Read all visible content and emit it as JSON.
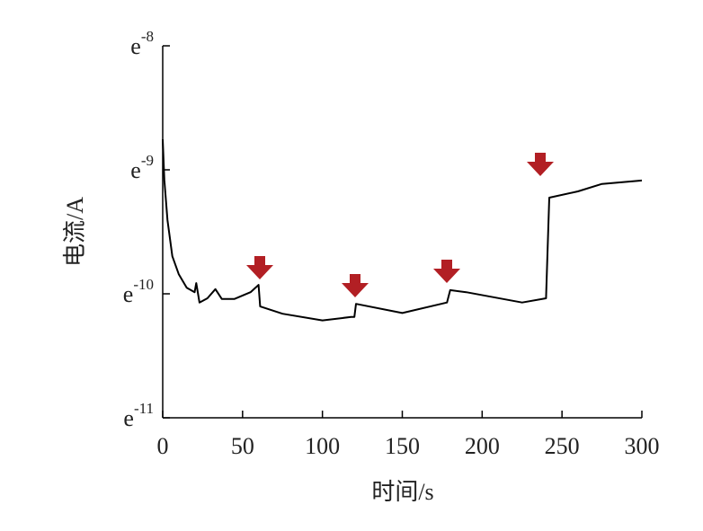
{
  "chart_data": {
    "type": "line",
    "x_label": "时间/s",
    "y_label": "电流/A",
    "x": [
      0,
      1,
      3,
      6,
      10,
      15,
      20,
      21,
      23,
      28,
      33,
      37,
      45,
      55,
      60,
      61,
      75,
      100,
      118,
      120,
      121,
      150,
      178,
      180,
      190,
      225,
      240,
      242,
      260,
      275,
      300
    ],
    "series": [
      {
        "color": "#000000",
        "values": [
          1.76e-09,
          8.3e-10,
          3.93e-10,
          2.01e-10,
          1.44e-10,
          1.12e-10,
          1.03e-10,
          1.22e-10,
          8.5e-11,
          9.2e-11,
          1.09e-10,
          9.1e-11,
          9.1e-11,
          1.03e-10,
          1.18e-10,
          7.9e-11,
          6.9e-11,
          6.1e-11,
          6.5e-11,
          6.5e-11,
          8.3e-11,
          7e-11,
          8.5e-11,
          1.07e-10,
          1.03e-10,
          8.5e-11,
          9.2e-11,
          5.96e-10,
          6.7e-10,
          7.7e-10,
          8.2e-10
        ]
      }
    ],
    "xlim": [
      0,
      300
    ],
    "xticks": [
      0,
      50,
      100,
      150,
      200,
      250,
      300
    ],
    "ylim": [
      1e-11,
      1e-08
    ],
    "y_scale": "log",
    "yticks": [
      {
        "value": 1e-11,
        "label": "e-11"
      },
      {
        "value": 1e-10,
        "label": "e-10"
      },
      {
        "value": 1e-09,
        "label": "e-9"
      },
      {
        "value": 1e-08,
        "label": "e-8"
      }
    ],
    "grid": false
  }
}
